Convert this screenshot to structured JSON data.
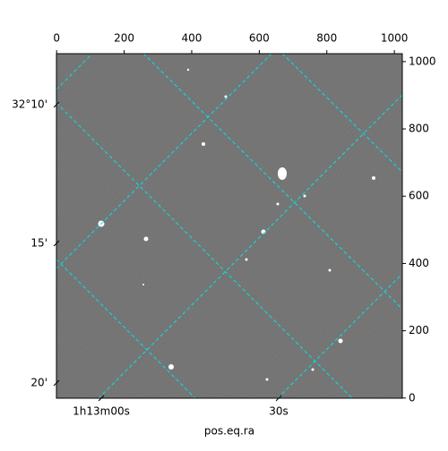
{
  "chart_data": {
    "type": "image",
    "xlabel": "pos.eq.ra",
    "xlim": [
      -0.5,
      1023.5
    ],
    "xticks": [
      0,
      200,
      400,
      600,
      800,
      1000
    ],
    "ylim": [
      -0.5,
      1023.5
    ],
    "yticks": [
      0,
      200,
      400,
      600,
      800,
      1000
    ],
    "ra_tick_labels": [
      "1h13m00s",
      "30s"
    ],
    "dec_tick_labels": [
      "32°10'",
      "15'",
      "20'"
    ],
    "grid_color": "#00e5e5"
  }
}
